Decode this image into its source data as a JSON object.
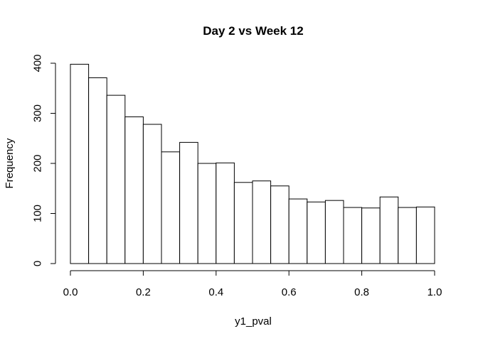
{
  "chart_data": {
    "type": "bar",
    "title": "Day 2 vs Week 12",
    "xlabel": "y1_pval",
    "ylabel": "Frequency",
    "bin_width": 0.05,
    "bins": [
      {
        "x0": 0.0,
        "x1": 0.05,
        "count": 398
      },
      {
        "x0": 0.05,
        "x1": 0.1,
        "count": 371
      },
      {
        "x0": 0.1,
        "x1": 0.15,
        "count": 336
      },
      {
        "x0": 0.15,
        "x1": 0.2,
        "count": 293
      },
      {
        "x0": 0.2,
        "x1": 0.25,
        "count": 278
      },
      {
        "x0": 0.25,
        "x1": 0.3,
        "count": 223
      },
      {
        "x0": 0.3,
        "x1": 0.35,
        "count": 242
      },
      {
        "x0": 0.35,
        "x1": 0.4,
        "count": 200
      },
      {
        "x0": 0.4,
        "x1": 0.45,
        "count": 201
      },
      {
        "x0": 0.45,
        "x1": 0.5,
        "count": 162
      },
      {
        "x0": 0.5,
        "x1": 0.55,
        "count": 165
      },
      {
        "x0": 0.55,
        "x1": 0.6,
        "count": 155
      },
      {
        "x0": 0.6,
        "x1": 0.65,
        "count": 129
      },
      {
        "x0": 0.65,
        "x1": 0.7,
        "count": 123
      },
      {
        "x0": 0.7,
        "x1": 0.75,
        "count": 126
      },
      {
        "x0": 0.75,
        "x1": 0.8,
        "count": 112
      },
      {
        "x0": 0.8,
        "x1": 0.85,
        "count": 111
      },
      {
        "x0": 0.85,
        "x1": 0.9,
        "count": 133
      },
      {
        "x0": 0.9,
        "x1": 0.95,
        "count": 112
      },
      {
        "x0": 0.95,
        "x1": 1.0,
        "count": 113
      }
    ],
    "xlim": [
      0,
      1
    ],
    "ylim": [
      0,
      400
    ],
    "x_ticks": [
      0.0,
      0.2,
      0.4,
      0.6,
      0.8,
      1.0
    ],
    "x_tick_labels": [
      "0.0",
      "0.2",
      "0.4",
      "0.6",
      "0.8",
      "1.0"
    ],
    "y_ticks": [
      0,
      100,
      200,
      300,
      400
    ],
    "y_tick_labels": [
      "0",
      "100",
      "200",
      "300",
      "400"
    ],
    "grid": false,
    "bar_fill": "#ffffff",
    "bar_stroke": "#000000"
  }
}
